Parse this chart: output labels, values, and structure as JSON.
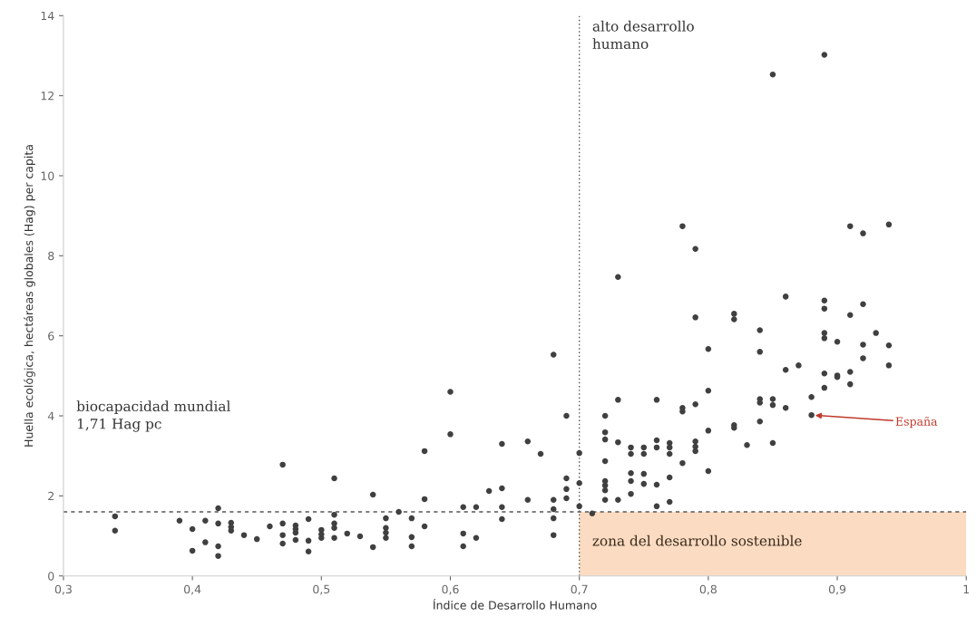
{
  "chart_data": {
    "type": "scatter",
    "xlabel": "Índice de Desarrollo Humano",
    "ylabel": "Huella ecológica, hectáreas globales (Hag) per capita",
    "xlim": [
      0.3,
      1.0
    ],
    "xticks": [
      {
        "value": 0.3,
        "label": "0,3"
      },
      {
        "value": 0.4,
        "label": "0,4"
      },
      {
        "value": 0.5,
        "label": "0,5"
      },
      {
        "value": 0.6,
        "label": "0,6"
      },
      {
        "value": 0.7,
        "label": "0,7"
      },
      {
        "value": 0.8,
        "label": "0,8"
      },
      {
        "value": 0.9,
        "label": "0,9"
      },
      {
        "value": 1.0,
        "label": "1"
      }
    ],
    "ylim": [
      0,
      14
    ],
    "yticks": [
      0,
      2,
      4,
      6,
      8,
      10,
      12,
      14
    ],
    "grid": false,
    "marker": "circle",
    "series": [
      {
        "color": "#404040",
        "x": [
          0.34,
          0.34,
          0.39,
          0.4,
          0.4,
          0.41,
          0.41,
          0.42,
          0.42,
          0.42,
          0.42,
          0.43,
          0.43,
          0.43,
          0.44,
          0.45,
          0.46,
          0.47,
          0.47,
          0.47,
          0.47,
          0.48,
          0.48,
          0.48,
          0.48,
          0.49,
          0.49,
          0.49,
          0.5,
          0.5,
          0.5,
          0.51,
          0.51,
          0.51,
          0.51,
          0.51,
          0.52,
          0.53,
          0.54,
          0.54,
          0.55,
          0.55,
          0.55,
          0.55,
          0.56,
          0.57,
          0.57,
          0.57,
          0.58,
          0.58,
          0.58,
          0.6,
          0.6,
          0.61,
          0.61,
          0.61,
          0.62,
          0.62,
          0.63,
          0.64,
          0.64,
          0.64,
          0.64,
          0.66,
          0.66,
          0.67,
          0.68,
          0.68,
          0.68,
          0.68,
          0.68,
          0.69,
          0.69,
          0.69,
          0.69,
          0.7,
          0.7,
          0.7,
          0.71,
          0.72,
          0.72,
          0.72,
          0.72,
          0.72,
          0.72,
          0.72,
          0.72,
          0.73,
          0.73,
          0.73,
          0.73,
          0.74,
          0.74,
          0.74,
          0.74,
          0.74,
          0.75,
          0.75,
          0.75,
          0.75,
          0.76,
          0.76,
          0.76,
          0.76,
          0.76,
          0.77,
          0.77,
          0.77,
          0.77,
          0.77,
          0.78,
          0.78,
          0.78,
          0.78,
          0.79,
          0.79,
          0.79,
          0.79,
          0.79,
          0.79,
          0.8,
          0.8,
          0.8,
          0.8,
          0.82,
          0.82,
          0.82,
          0.82,
          0.83,
          0.84,
          0.84,
          0.84,
          0.84,
          0.84,
          0.85,
          0.85,
          0.85,
          0.85,
          0.86,
          0.86,
          0.86,
          0.87,
          0.88,
          0.88,
          0.89,
          0.89,
          0.89,
          0.89,
          0.89,
          0.89,
          0.89,
          0.9,
          0.9,
          0.9,
          0.91,
          0.91,
          0.91,
          0.91,
          0.92,
          0.92,
          0.92,
          0.92,
          0.93,
          0.94,
          0.94,
          0.94
        ],
        "values": [
          1.49,
          1.13,
          1.38,
          1.17,
          0.63,
          1.38,
          0.84,
          1.69,
          1.31,
          0.74,
          0.5,
          1.33,
          1.22,
          1.13,
          1.02,
          0.92,
          1.24,
          2.78,
          1.31,
          1.02,
          0.81,
          1.26,
          1.17,
          1.08,
          0.9,
          1.42,
          0.88,
          0.61,
          1.15,
          1.04,
          0.95,
          2.44,
          1.53,
          1.31,
          1.2,
          0.95,
          1.06,
          0.99,
          2.03,
          0.72,
          1.44,
          1.2,
          1.08,
          0.95,
          1.6,
          1.44,
          0.97,
          0.74,
          3.12,
          1.92,
          1.24,
          4.6,
          3.54,
          1.72,
          1.06,
          0.74,
          1.72,
          0.95,
          2.12,
          3.3,
          2.19,
          1.72,
          1.42,
          3.36,
          1.9,
          3.05,
          5.53,
          1.9,
          1.67,
          1.44,
          1.02,
          4.0,
          2.44,
          2.17,
          1.94,
          3.07,
          2.32,
          1.74,
          1.56,
          4.0,
          3.59,
          3.41,
          2.87,
          2.37,
          2.26,
          2.14,
          1.9,
          7.47,
          4.4,
          3.34,
          1.9,
          3.21,
          3.05,
          2.57,
          2.37,
          2.05,
          3.21,
          3.05,
          2.55,
          2.3,
          4.4,
          3.39,
          3.21,
          2.28,
          1.74,
          3.32,
          3.21,
          3.05,
          2.46,
          1.85,
          8.74,
          4.2,
          4.11,
          2.82,
          8.17,
          6.46,
          4.29,
          3.36,
          3.23,
          3.12,
          5.67,
          4.63,
          3.63,
          2.62,
          6.55,
          6.41,
          3.77,
          3.7,
          3.27,
          6.14,
          5.6,
          4.42,
          4.33,
          3.86,
          12.53,
          4.42,
          4.27,
          3.32,
          6.98,
          5.15,
          4.2,
          5.26,
          4.47,
          4.02,
          13.02,
          6.88,
          6.68,
          6.07,
          5.94,
          5.06,
          4.7,
          5.85,
          5.01,
          4.97,
          8.74,
          6.52,
          5.1,
          4.79,
          8.56,
          6.79,
          5.78,
          5.44,
          6.07,
          8.78,
          5.76,
          5.26
        ]
      }
    ],
    "ref_lines": [
      {
        "axis": "x",
        "value": 0.7,
        "color": "#555555",
        "line_style": "dotted"
      },
      {
        "axis": "y",
        "value": 1.6,
        "color": "#555555",
        "line_style": "dashed"
      }
    ],
    "bands": [
      {
        "axis": "x",
        "from": 0.7,
        "to": 1.0,
        "label": "zona del desarrollo sostenible",
        "color": "#fbdcc3"
      }
    ],
    "annotations": [
      {
        "text": "España",
        "x": 0.88,
        "y": 4.02
      },
      "alto desarrollo\nhumano",
      "biocapacidad mundial\n1,71 Hag pc"
    ]
  }
}
